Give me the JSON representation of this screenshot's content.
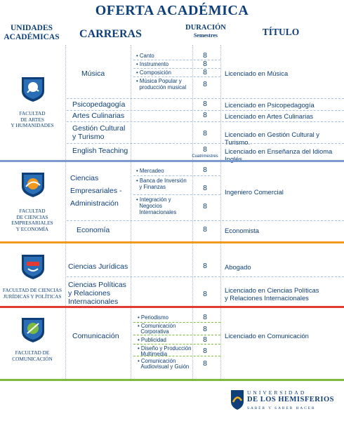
{
  "title": "OFERTA ACADÉMICA",
  "headers": {
    "units_line1": "UNIDADES",
    "units_line2": "ACADÉMICAS",
    "careers": "CARRERAS",
    "duration": "DURACIÓN",
    "semesters": "Semestres",
    "degree": "TÍTULO"
  },
  "colors": {
    "primary": "#0e3f78",
    "band_arts": "#7a9ccc",
    "band_business": "#f39a1e",
    "band_law": "#e23a34",
    "band_comm": "#7dbb3f"
  },
  "faculties": {
    "arts": {
      "line1": "FACULTAD",
      "line2": "DE ARTES",
      "line3": "Y HUMANIDADES",
      "icon": "shield-arts-icon"
    },
    "business": {
      "line1": "FACULTAD",
      "line2": "DE CIENCIAS",
      "line3": "EMPRESARIALES",
      "line4": "Y ECONOMÍA",
      "icon": "shield-business-icon"
    },
    "law": {
      "line1": "FACULTAD DE CIENCIAS",
      "line2": "JURÍDICAS Y POLÍTICAS",
      "icon": "shield-law-icon"
    },
    "comm": {
      "line1": "FACULTAD DE",
      "line2": "COMUNICACIÓN",
      "icon": "shield-comm-icon"
    }
  },
  "arts": {
    "musica": {
      "name": "Música",
      "title": "Licenciado en Música",
      "subs": [
        "Canto",
        "Instrumento",
        "Composición",
        "Música Popular y",
        "producción musical"
      ],
      "durations": [
        "8",
        "8",
        "8",
        "8"
      ]
    },
    "psicopedagogia": {
      "name": "Psicopedagogía",
      "duration": "8",
      "title": "Licenciado en Psicopedagogía"
    },
    "artes_culinarias": {
      "name": "Artes Culinarias",
      "duration": "8",
      "title": "Licenciado en Artes Culinarias"
    },
    "gestion": {
      "name_l1": "Gestión Cultural",
      "name_l2": "y Turismo",
      "duration": "8",
      "title": "Licenciado en Gestión Cultural y Turismo."
    },
    "english": {
      "name": "English Teaching",
      "duration": "8",
      "duration_note": "Cuatrimestres",
      "title": "Licenciado en Enseñanza del Idioma Inglés"
    }
  },
  "business": {
    "ciencias": {
      "name_l1": "Ciencias",
      "name_l2": "Empresariales -",
      "name_l3": "Administración",
      "subs": [
        "Mercadeo",
        "Banca de Inversión",
        "y Finanzas",
        "Integración y",
        "Negocios",
        "Internacionales"
      ],
      "durations": [
        "8",
        "8",
        "8"
      ],
      "title": "Ingeniero Comercial"
    },
    "economia": {
      "name": "Economía",
      "duration": "8",
      "title": "Economista"
    }
  },
  "law": {
    "juridicas": {
      "name": "Ciencias Jurídicas",
      "duration": "8",
      "title": "Abogado"
    },
    "politicas": {
      "name_l1": "Ciencias Políticas",
      "name_l2": "y Relaciones",
      "name_l3": "Internacionales",
      "duration": "8",
      "title_l1": "Licenciado en Ciencias Políticas",
      "title_l2": "y Relaciones Internacionales"
    }
  },
  "comm": {
    "comunicacion": {
      "name": "Comunicación",
      "title": "Licenciado en Comunicación",
      "subs": [
        "Periodismo",
        "Comunicación",
        "Corporativa",
        "Publicidad",
        "Diseño y Producción",
        "Multimedia",
        "Comunicación",
        "Audiovisual y Guión"
      ],
      "durations": [
        "8",
        "8",
        "8",
        "8",
        "8"
      ]
    }
  },
  "logo": {
    "line1": "UNIVERSIDAD",
    "line2": "DE LOS HEMISFERIOS",
    "line3": "SABER Y SABER HACER",
    "icon": "university-crest-icon"
  }
}
